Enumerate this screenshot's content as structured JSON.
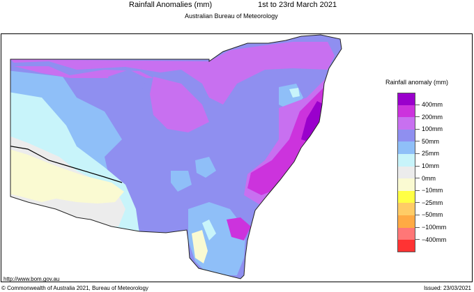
{
  "header": {
    "title": "Rainfall Anomalies (mm)",
    "dates": "1st to 23rd March 2021",
    "subtitle": "Australian Bureau of Meteorology"
  },
  "legend": {
    "title": "Rainfall anomaly (mm)",
    "items": [
      {
        "color": "#9a00cc",
        "label": "400mm"
      },
      {
        "color": "#cc33dd",
        "label": "200mm"
      },
      {
        "color": "#c870f0",
        "label": "100mm"
      },
      {
        "color": "#8f8ff0",
        "label": "50mm"
      },
      {
        "color": "#8fbff8",
        "label": "25mm"
      },
      {
        "color": "#c8f4fa",
        "label": "10mm"
      },
      {
        "color": "#ececec",
        "label": "0mm"
      },
      {
        "color": "#fafad2",
        "label": "−10mm"
      },
      {
        "color": "#ffff44",
        "label": "−25mm"
      },
      {
        "color": "#ffcc66",
        "label": "−50mm"
      },
      {
        "color": "#ffaa44",
        "label": "−100mm"
      },
      {
        "color": "#ff7777",
        "label": "−200mm"
      },
      {
        "color": "#ff3333",
        "label": ""
      }
    ],
    "bottom_label": "−400mm"
  },
  "footer": {
    "url": "http://www.bom.gov.au",
    "copyright": "© Commonwealth of Australia 2021, Bureau of Meteorology",
    "issued": "Issued: 23/03/2021"
  }
}
